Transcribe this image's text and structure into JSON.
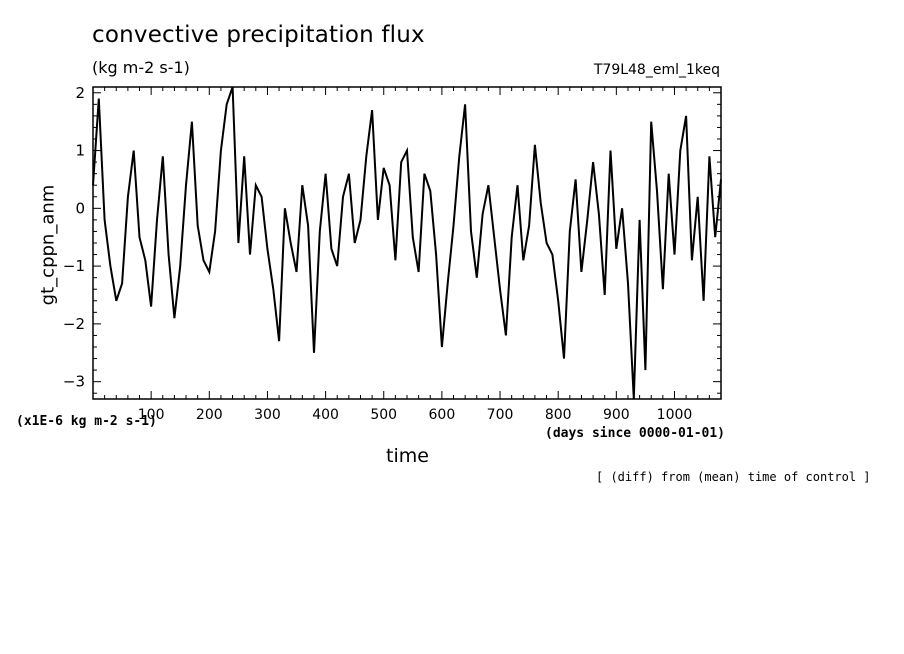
{
  "chart_data": {
    "type": "line",
    "title": "convective precipitation flux",
    "units": "(kg m-2 s-1)",
    "experiment": "T79L48_eml_1keq",
    "ylabel": "gt_cppn_anm",
    "y_multiplier": "(x1E-6 kg m-2 s-1)",
    "xlabel": "time",
    "x_units": "(days since 0000-01-01)",
    "note": "[ (diff) from (mean) time of control ]",
    "xlim": [
      0,
      1080
    ],
    "ylim": [
      -3.3,
      2.1
    ],
    "x_ticks": [
      100,
      200,
      300,
      400,
      500,
      600,
      700,
      800,
      900,
      1000
    ],
    "y_ticks": [
      -3,
      -2,
      -1,
      0,
      1,
      2
    ],
    "grid": false,
    "series": [
      {
        "color": "#000000",
        "x": [
          0,
          10,
          20,
          30,
          40,
          50,
          60,
          70,
          80,
          90,
          100,
          110,
          120,
          130,
          140,
          150,
          160,
          170,
          180,
          190,
          200,
          210,
          220,
          230,
          240,
          250,
          260,
          270,
          280,
          290,
          300,
          310,
          320,
          330,
          340,
          350,
          360,
          370,
          380,
          390,
          400,
          410,
          420,
          430,
          440,
          450,
          460,
          470,
          480,
          490,
          500,
          510,
          520,
          530,
          540,
          550,
          560,
          570,
          580,
          590,
          600,
          610,
          620,
          630,
          640,
          650,
          660,
          670,
          680,
          690,
          700,
          710,
          720,
          730,
          740,
          750,
          760,
          770,
          780,
          790,
          800,
          810,
          820,
          830,
          840,
          850,
          860,
          870,
          880,
          890,
          900,
          910,
          920,
          930,
          940,
          950,
          960,
          970,
          980,
          990,
          1000,
          1010,
          1020,
          1030,
          1040,
          1050,
          1060,
          1070,
          1080
        ],
        "y": [
          0.4,
          1.9,
          -0.2,
          -1.0,
          -1.6,
          -1.3,
          0.2,
          1.0,
          -0.5,
          -0.9,
          -1.7,
          -0.2,
          0.9,
          -0.8,
          -1.9,
          -1.0,
          0.4,
          1.5,
          -0.3,
          -0.9,
          -1.1,
          -0.4,
          1.0,
          1.8,
          2.1,
          -0.6,
          0.9,
          -0.8,
          0.4,
          0.2,
          -0.7,
          -1.4,
          -2.3,
          0.0,
          -0.6,
          -1.1,
          0.4,
          -0.3,
          -2.5,
          -0.4,
          0.6,
          -0.7,
          -1.0,
          0.2,
          0.6,
          -0.6,
          -0.2,
          0.9,
          1.7,
          -0.2,
          0.7,
          0.4,
          -0.9,
          0.8,
          1.0,
          -0.5,
          -1.1,
          0.6,
          0.3,
          -0.8,
          -2.4,
          -1.3,
          -0.3,
          0.9,
          1.8,
          -0.4,
          -1.2,
          -0.1,
          0.4,
          -0.5,
          -1.4,
          -2.2,
          -0.5,
          0.4,
          -0.9,
          -0.3,
          1.1,
          0.1,
          -0.6,
          -0.8,
          -1.6,
          -2.6,
          -0.4,
          0.5,
          -1.1,
          -0.2,
          0.8,
          -0.1,
          -1.5,
          1.0,
          -0.7,
          0.0,
          -1.3,
          -3.3,
          -0.2,
          -2.8,
          1.5,
          0.3,
          -1.4,
          0.6,
          -0.8,
          1.0,
          1.6,
          -0.9,
          0.2,
          -1.6,
          0.9,
          -0.5,
          0.5
        ]
      }
    ]
  }
}
